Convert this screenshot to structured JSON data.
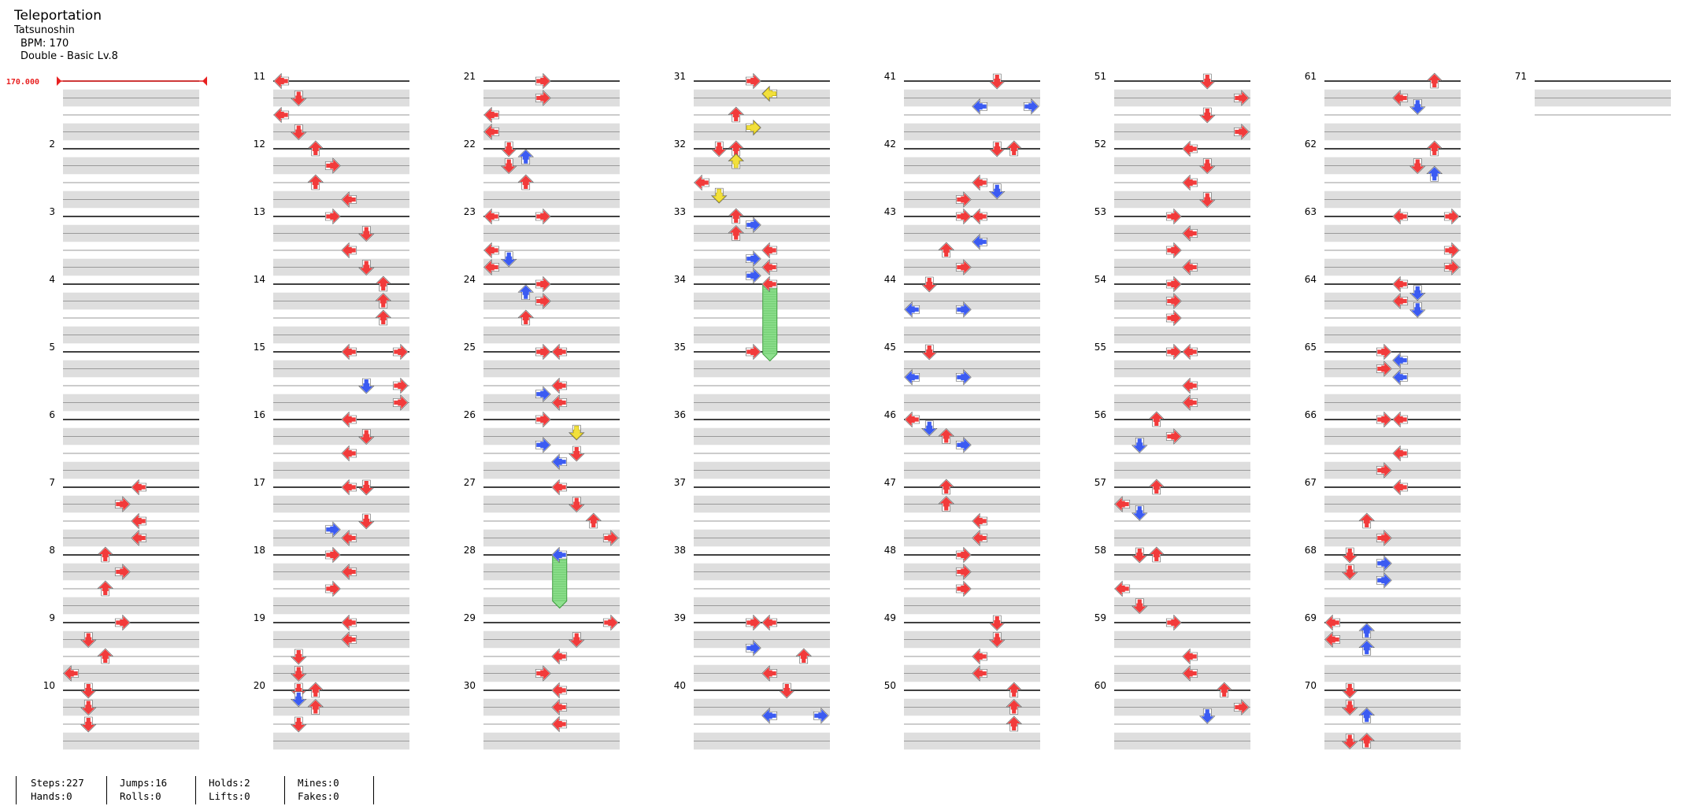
{
  "song": {
    "title": "Teleportation",
    "artist": "Tatsunoshin",
    "bpm_label": "BPM: 170",
    "chart_label": "Double - Basic Lv.8"
  },
  "bpm_marker": "170.000",
  "colors": {
    "quarter": "#f23b3b",
    "eighth": "#3b5bf2",
    "sixteenth": "#f2e03b",
    "hold": "#8ee08e",
    "measure_line": "#000000",
    "band": "#dedede"
  },
  "stats": {
    "steps": "Steps:227",
    "hands": "Hands:0",
    "jumps": "Jumps:16",
    "rolls": "Rolls:0",
    "holds": "Holds:2",
    "lifts": "Lifts:0",
    "mines": "Mines:0",
    "fakes": "Fakes:0"
  },
  "measures": {
    "2": [],
    "3": [],
    "4": [],
    "5": [],
    "6": [],
    "7": [
      [
        0,
        4,
        "L"
      ],
      [
        0.25,
        3,
        "R"
      ],
      [
        0.5,
        4,
        "L"
      ],
      [
        0.75,
        4,
        "L"
      ]
    ],
    "8": [
      [
        0,
        2,
        "U"
      ],
      [
        0.25,
        3,
        "R"
      ],
      [
        0.5,
        2,
        "U"
      ]
    ],
    "9": [
      [
        0,
        3,
        "R"
      ],
      [
        0.25,
        1,
        "D"
      ],
      [
        0.5,
        2,
        "U"
      ],
      [
        0.75,
        0,
        "L"
      ]
    ],
    "10": [
      [
        0,
        1,
        "D"
      ],
      [
        0.25,
        1,
        "D"
      ],
      [
        0.5,
        1,
        "D"
      ]
    ],
    "11": [
      [
        0,
        0,
        "L"
      ],
      [
        0.25,
        1,
        "D"
      ],
      [
        0.5,
        0,
        "L"
      ],
      [
        0.75,
        1,
        "D"
      ]
    ],
    "12": [
      [
        0,
        2,
        "U"
      ],
      [
        0.25,
        3,
        "R"
      ],
      [
        0.5,
        2,
        "U"
      ],
      [
        0.75,
        4,
        "L"
      ]
    ],
    "13": [
      [
        0,
        3,
        "R"
      ],
      [
        0.25,
        5,
        "D"
      ],
      [
        0.5,
        4,
        "L"
      ],
      [
        0.75,
        5,
        "D"
      ]
    ],
    "14": [
      [
        0,
        6,
        "U"
      ],
      [
        0.25,
        6,
        "U"
      ],
      [
        0.5,
        6,
        "U"
      ]
    ],
    "15": [
      [
        0,
        4,
        "L"
      ],
      [
        0,
        7,
        "R"
      ],
      [
        0.5,
        5,
        "D",
        1
      ],
      [
        0.5,
        7,
        "R"
      ],
      [
        0.75,
        7,
        "R"
      ]
    ],
    "16": [
      [
        0,
        4,
        "L"
      ],
      [
        0.25,
        5,
        "D"
      ],
      [
        0.5,
        4,
        "L"
      ]
    ],
    "17": [
      [
        0,
        4,
        "L"
      ],
      [
        0,
        5,
        "D"
      ],
      [
        0.5,
        5,
        "D"
      ],
      [
        0.625,
        3,
        "R",
        1
      ],
      [
        0.75,
        4,
        "L"
      ]
    ],
    "18": [
      [
        0,
        3,
        "R"
      ],
      [
        0.25,
        4,
        "L"
      ],
      [
        0.5,
        3,
        "R"
      ]
    ],
    "19": [
      [
        0,
        4,
        "L"
      ],
      [
        0.25,
        4,
        "L"
      ],
      [
        0.5,
        1,
        "D"
      ],
      [
        0.75,
        1,
        "D"
      ]
    ],
    "20": [
      [
        0,
        1,
        "D"
      ],
      [
        0,
        2,
        "U"
      ],
      [
        0.125,
        1,
        "D",
        1
      ],
      [
        0.25,
        2,
        "U"
      ],
      [
        0.5,
        1,
        "D"
      ]
    ],
    "21": [
      [
        0,
        3,
        "R"
      ],
      [
        0.25,
        3,
        "R"
      ],
      [
        0.5,
        0,
        "L"
      ],
      [
        0.75,
        0,
        "L"
      ]
    ],
    "22": [
      [
        0,
        1,
        "D"
      ],
      [
        0.125,
        2,
        "U",
        1
      ],
      [
        0.25,
        1,
        "D"
      ],
      [
        0.5,
        2,
        "U"
      ]
    ],
    "23": [
      [
        0,
        0,
        "L"
      ],
      [
        0,
        3,
        "R"
      ],
      [
        0.5,
        0,
        "L"
      ],
      [
        0.625,
        1,
        "D",
        1
      ],
      [
        0.75,
        0,
        "L"
      ]
    ],
    "24": [
      [
        0,
        3,
        "R"
      ],
      [
        0.125,
        2,
        "U",
        1
      ],
      [
        0.25,
        3,
        "R"
      ],
      [
        0.5,
        2,
        "U"
      ]
    ],
    "25": [
      [
        0,
        3,
        "R"
      ],
      [
        0,
        4,
        "L"
      ],
      [
        0.5,
        4,
        "L"
      ],
      [
        0.625,
        3,
        "R",
        1
      ],
      [
        0.75,
        4,
        "L"
      ]
    ],
    "26": [
      [
        0,
        3,
        "R"
      ],
      [
        0.1875,
        5,
        "D",
        2
      ],
      [
        0.375,
        3,
        "R",
        1
      ],
      [
        0.5,
        5,
        "D"
      ],
      [
        0.625,
        4,
        "L",
        1
      ]
    ],
    "27": [
      [
        0,
        4,
        "L"
      ],
      [
        0.25,
        5,
        "D"
      ],
      [
        0.5,
        6,
        "U"
      ],
      [
        0.75,
        7,
        "R"
      ]
    ],
    "28": [
      [
        0,
        4,
        "L",
        1
      ]
    ],
    "29": [
      [
        0,
        7,
        "R"
      ],
      [
        0.25,
        5,
        "D"
      ],
      [
        0.5,
        4,
        "L"
      ],
      [
        0.75,
        3,
        "R"
      ]
    ],
    "30": [
      [
        0,
        4,
        "L"
      ],
      [
        0.25,
        4,
        "L"
      ],
      [
        0.5,
        4,
        "L"
      ]
    ],
    "31": [
      [
        0,
        3,
        "R"
      ],
      [
        0.1875,
        4,
        "L",
        2
      ],
      [
        0.5,
        2,
        "U"
      ],
      [
        0.6875,
        3,
        "R",
        2
      ]
    ],
    "32": [
      [
        0,
        1,
        "D"
      ],
      [
        0,
        2,
        "U"
      ],
      [
        0.1875,
        2,
        "U",
        2
      ],
      [
        0.5,
        0,
        "L"
      ],
      [
        0.6875,
        1,
        "D",
        2
      ]
    ],
    "33": [
      [
        0,
        2,
        "U"
      ],
      [
        0.125,
        3,
        "R",
        1
      ],
      [
        0.25,
        2,
        "U"
      ],
      [
        0.5,
        4,
        "L"
      ],
      [
        0.625,
        3,
        "R",
        1
      ],
      [
        0.75,
        4,
        "L"
      ],
      [
        0.875,
        3,
        "R",
        1
      ]
    ],
    "34": [
      [
        0,
        4,
        "L"
      ]
    ],
    "35": [
      [
        0,
        3,
        "R"
      ]
    ],
    "36": [],
    "37": [],
    "38": [],
    "39": [
      [
        0,
        3,
        "R"
      ],
      [
        0,
        4,
        "L"
      ],
      [
        0.375,
        3,
        "R",
        1
      ],
      [
        0.5,
        6,
        "U"
      ],
      [
        0.75,
        4,
        "L"
      ]
    ],
    "40": [
      [
        0,
        5,
        "D"
      ],
      [
        0.375,
        4,
        "L",
        1
      ],
      [
        0.375,
        7,
        "R",
        1
      ]
    ],
    "41": [
      [
        0,
        5,
        "D"
      ],
      [
        0.375,
        4,
        "L",
        1
      ],
      [
        0.375,
        7,
        "R",
        1
      ]
    ],
    "42": [
      [
        0,
        5,
        "D"
      ],
      [
        0,
        6,
        "U"
      ],
      [
        0.5,
        4,
        "L"
      ],
      [
        0.625,
        5,
        "D",
        1
      ],
      [
        0.75,
        3,
        "R"
      ]
    ],
    "43": [
      [
        0,
        3,
        "R"
      ],
      [
        0,
        4,
        "L"
      ],
      [
        0.375,
        4,
        "L",
        1
      ],
      [
        0.5,
        2,
        "U"
      ],
      [
        0.75,
        3,
        "R"
      ]
    ],
    "44": [
      [
        0,
        1,
        "D"
      ],
      [
        0.375,
        0,
        "L",
        1
      ],
      [
        0.375,
        3,
        "R",
        1
      ]
    ],
    "45": [
      [
        0,
        1,
        "D"
      ],
      [
        0.375,
        0,
        "L",
        1
      ],
      [
        0.375,
        3,
        "R",
        1
      ]
    ],
    "46": [
      [
        0,
        0,
        "L"
      ],
      [
        0.125,
        1,
        "D",
        1
      ],
      [
        0.25,
        2,
        "U"
      ],
      [
        0.375,
        3,
        "R",
        1
      ]
    ],
    "47": [
      [
        0,
        2,
        "U"
      ],
      [
        0.25,
        2,
        "U"
      ],
      [
        0.5,
        4,
        "L"
      ],
      [
        0.75,
        4,
        "L"
      ]
    ],
    "48": [
      [
        0,
        3,
        "R"
      ],
      [
        0.25,
        3,
        "R"
      ],
      [
        0.5,
        3,
        "R"
      ]
    ],
    "49": [
      [
        0,
        5,
        "D"
      ],
      [
        0.25,
        5,
        "D"
      ],
      [
        0.5,
        4,
        "L"
      ],
      [
        0.75,
        4,
        "L"
      ]
    ],
    "50": [
      [
        0,
        6,
        "U"
      ],
      [
        0.25,
        6,
        "U"
      ],
      [
        0.5,
        6,
        "U"
      ]
    ],
    "51": [
      [
        0,
        5,
        "D"
      ],
      [
        0.25,
        7,
        "R"
      ],
      [
        0.5,
        5,
        "D"
      ],
      [
        0.75,
        7,
        "R"
      ]
    ],
    "52": [
      [
        0,
        4,
        "L"
      ],
      [
        0.25,
        5,
        "D"
      ],
      [
        0.5,
        4,
        "L"
      ],
      [
        0.75,
        5,
        "D"
      ]
    ],
    "53": [
      [
        0,
        3,
        "R"
      ],
      [
        0.25,
        4,
        "L"
      ],
      [
        0.5,
        3,
        "R"
      ],
      [
        0.75,
        4,
        "L"
      ]
    ],
    "54": [
      [
        0,
        3,
        "R"
      ],
      [
        0.25,
        3,
        "R"
      ],
      [
        0.5,
        3,
        "R"
      ]
    ],
    "55": [
      [
        0,
        3,
        "R"
      ],
      [
        0,
        4,
        "L"
      ],
      [
        0.5,
        4,
        "L"
      ],
      [
        0.75,
        4,
        "L"
      ]
    ],
    "56": [
      [
        0,
        2,
        "U"
      ],
      [
        0.25,
        3,
        "R"
      ],
      [
        0.375,
        1,
        "D",
        1
      ]
    ],
    "57": [
      [
        0,
        2,
        "U"
      ],
      [
        0.25,
        0,
        "L"
      ],
      [
        0.375,
        1,
        "D",
        1
      ]
    ],
    "58": [
      [
        0,
        1,
        "D"
      ],
      [
        0,
        2,
        "U"
      ],
      [
        0.5,
        0,
        "L"
      ],
      [
        0.75,
        1,
        "D"
      ]
    ],
    "59": [
      [
        0,
        3,
        "R"
      ],
      [
        0.5,
        4,
        "L"
      ],
      [
        0.75,
        4,
        "L"
      ]
    ],
    "60": [
      [
        0,
        6,
        "U"
      ],
      [
        0.25,
        7,
        "R"
      ],
      [
        0.375,
        5,
        "D",
        1
      ]
    ],
    "61": [
      [
        0,
        6,
        "U"
      ],
      [
        0.25,
        4,
        "L"
      ],
      [
        0.375,
        5,
        "D",
        1
      ]
    ],
    "62": [
      [
        0,
        6,
        "U"
      ],
      [
        0.25,
        5,
        "D"
      ],
      [
        0.375,
        6,
        "U",
        1
      ]
    ],
    "63": [
      [
        0,
        4,
        "L"
      ],
      [
        0,
        7,
        "R"
      ],
      [
        0.5,
        7,
        "R"
      ],
      [
        0.75,
        7,
        "R"
      ]
    ],
    "64": [
      [
        0,
        4,
        "L"
      ],
      [
        0.125,
        5,
        "D",
        1
      ],
      [
        0.25,
        4,
        "L"
      ],
      [
        0.375,
        5,
        "D",
        1
      ]
    ],
    "65": [
      [
        0,
        3,
        "R"
      ],
      [
        0.125,
        4,
        "L",
        1
      ],
      [
        0.25,
        3,
        "R"
      ],
      [
        0.375,
        4,
        "L",
        1
      ]
    ],
    "66": [
      [
        0,
        3,
        "R"
      ],
      [
        0,
        4,
        "L"
      ],
      [
        0.5,
        4,
        "L"
      ],
      [
        0.75,
        3,
        "R"
      ]
    ],
    "67": [
      [
        0,
        4,
        "L"
      ],
      [
        0.5,
        2,
        "U"
      ],
      [
        0.75,
        3,
        "R"
      ]
    ],
    "68": [
      [
        0,
        1,
        "D"
      ],
      [
        0.125,
        3,
        "R",
        1
      ],
      [
        0.25,
        1,
        "D"
      ],
      [
        0.375,
        3,
        "R",
        1
      ]
    ],
    "69": [
      [
        0,
        0,
        "L"
      ],
      [
        0.125,
        2,
        "U",
        1
      ],
      [
        0.25,
        0,
        "L"
      ],
      [
        0.375,
        2,
        "U",
        1
      ]
    ],
    "70": [
      [
        0,
        1,
        "D"
      ],
      [
        0.25,
        1,
        "D"
      ],
      [
        0.375,
        2,
        "U",
        1
      ],
      [
        0.75,
        1,
        "D"
      ],
      [
        0.75,
        2,
        "U"
      ]
    ],
    "71": []
  },
  "holds": [
    {
      "measure": 28,
      "beat": 0,
      "lane": 4,
      "length": 0.75
    },
    {
      "measure": 34,
      "beat": 0,
      "lane": 4,
      "length": 1.1
    }
  ]
}
